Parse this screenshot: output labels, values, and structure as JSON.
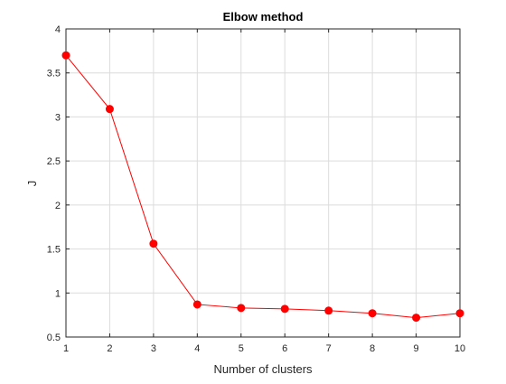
{
  "chart_data": {
    "type": "line",
    "title": "Elbow method",
    "xlabel": "Number of clusters",
    "ylabel": "J",
    "xlim": [
      1,
      10
    ],
    "ylim": [
      0.5,
      4
    ],
    "x_ticks": [
      1,
      2,
      3,
      4,
      5,
      6,
      7,
      8,
      9,
      10
    ],
    "y_ticks": [
      0.5,
      1,
      1.5,
      2,
      2.5,
      3,
      3.5,
      4
    ],
    "grid": true,
    "legend": "none",
    "series": [
      {
        "x": [
          1,
          2,
          3,
          4,
          5,
          6,
          7,
          8,
          9,
          10
        ],
        "y": [
          3.7,
          3.09,
          1.56,
          0.87,
          0.83,
          0.82,
          0.8,
          0.77,
          0.72,
          0.77
        ],
        "color": "#ff0000",
        "marker": "circle"
      }
    ]
  }
}
